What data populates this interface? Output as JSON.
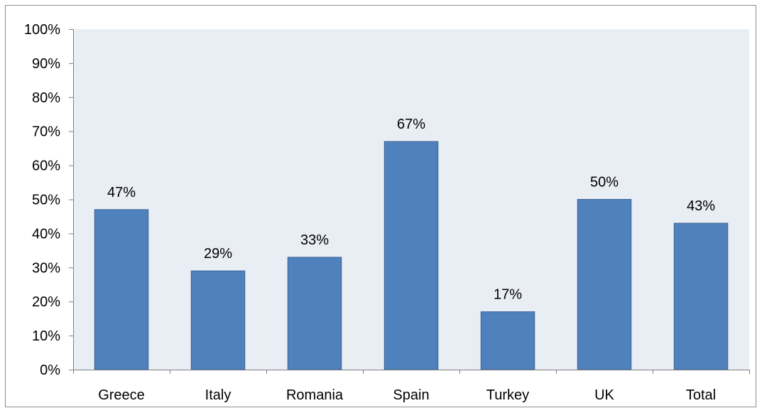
{
  "chart_data": {
    "type": "bar",
    "title": "",
    "xlabel": "",
    "ylabel": "",
    "categories": [
      "Greece",
      "Italy",
      "Romania",
      "Spain",
      "Turkey",
      "UK",
      "Total"
    ],
    "values": [
      47,
      29,
      33,
      67,
      17,
      50,
      43
    ],
    "value_labels": [
      "47%",
      "29%",
      "33%",
      "67%",
      "17%",
      "50%",
      "43%"
    ],
    "ylim": [
      0,
      100
    ],
    "y_ticks": [
      0,
      10,
      20,
      30,
      40,
      50,
      60,
      70,
      80,
      90,
      100
    ],
    "y_tick_labels": [
      "0%",
      "10%",
      "20%",
      "30%",
      "40%",
      "50%",
      "60%",
      "70%",
      "80%",
      "90%",
      "100%"
    ],
    "grid": false,
    "legend": "none",
    "colors": {
      "bar_fill": "#4f81bd",
      "bar_stroke": "#3a6494",
      "plot_background": "#e9edf4",
      "axis": "#7f7f7f"
    }
  }
}
